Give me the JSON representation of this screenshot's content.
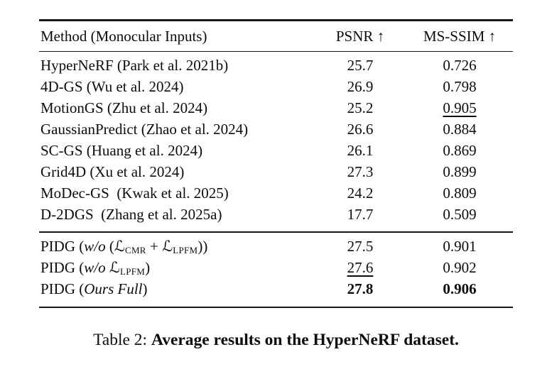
{
  "table": {
    "header": {
      "method": "Method (Monocular Inputs)",
      "psnr": "PSNR ↑",
      "msssim": "MS-SSIM ↑"
    },
    "rows": [
      {
        "method": "HyperNeRF (Park et al. 2021b)",
        "psnr": "25.7",
        "msssim": "0.726"
      },
      {
        "method": "4D-GS (Wu et al. 2024)",
        "psnr": "26.9",
        "msssim": "0.798"
      },
      {
        "method": "MotionGS (Zhu et al. 2024)",
        "psnr": "25.2",
        "msssim": "0.905"
      },
      {
        "method": "GaussianPredict (Zhao et al. 2024)",
        "psnr": "26.6",
        "msssim": "0.884"
      },
      {
        "method": "SC-GS (Huang et al. 2024)",
        "psnr": "26.1",
        "msssim": "0.869"
      },
      {
        "method": "Grid4D (Xu et al. 2024)",
        "psnr": "27.3",
        "msssim": "0.899"
      },
      {
        "method": "MoDec-GS  (Kwak et al. 2025)",
        "psnr": "24.2",
        "msssim": "0.809"
      },
      {
        "method": "D-2DGS  (Zhang et al. 2025a)",
        "psnr": "17.7",
        "msssim": "0.509"
      }
    ],
    "ablation": [
      {
        "pre": "PIDG (",
        "wo": "w/o",
        "mid": " (",
        "L1": "ℒ",
        "sub1": "CMR",
        "plus": " + ",
        "L2": "ℒ",
        "sub2": "LPFM",
        "post": "))",
        "psnr": "27.5",
        "msssim": "0.901"
      },
      {
        "pre": "PIDG (",
        "wo": "w/o",
        "mid": " ",
        "L1": "ℒ",
        "sub1": "LPFM",
        "post": ")",
        "psnr": "27.6",
        "msssim": "0.902"
      },
      {
        "pre": "PIDG (",
        "ours": "Ours Full",
        "post": ")",
        "psnr": "27.8",
        "msssim": "0.906"
      }
    ]
  },
  "caption": {
    "prefix": "Table 2: ",
    "bold": "Average results on the HyperNeRF dataset",
    "period": "."
  }
}
